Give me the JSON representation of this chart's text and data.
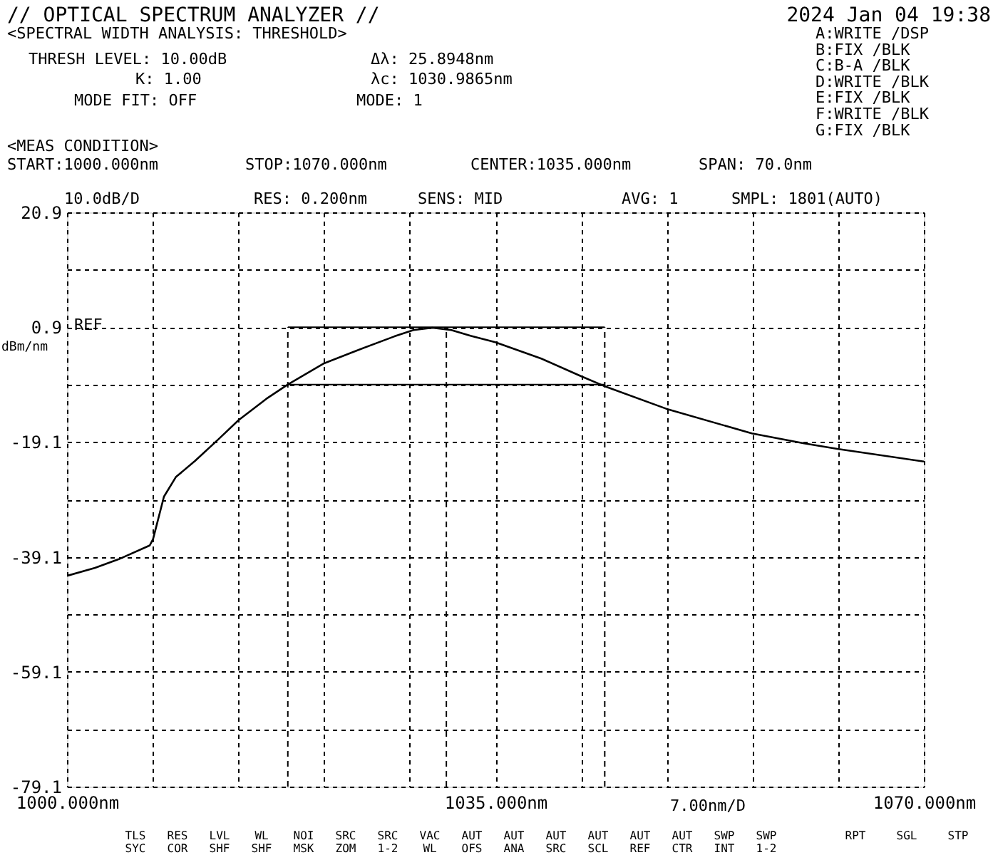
{
  "chart_data": {
    "type": "line",
    "title": "// OPTICAL SPECTRUM ANALYZER //",
    "subtitle": "2024 Jan 04 19:38",
    "ylabel": "dBm/nm",
    "xlabel": "7.00nm/D",
    "annotations": [
      "<SPECTRAL WIDTH ANALYSIS: THRESHOLD>",
      "THRESH LEVEL: 10.00dB",
      "K: 1.00",
      "MODE FIT: OFF",
      "Δλ: 25.8948nm",
      "λc: 1030.9865nm",
      "MODE: 1",
      "A:WRITE /DSP",
      "B:FIX /BLK",
      "C:B-A /BLK",
      "D:WRITE /BLK",
      "E:FIX /BLK",
      "F:WRITE /BLK",
      "G:FIX /BLK",
      "<MEAS CONDITION>",
      "START:1000.000nm",
      "STOP:1070.000nm",
      "CENTER:1035.000nm",
      "SPAN: 70.0nm",
      "10.0dB/D",
      "RES: 0.200nm",
      "SENS: MID",
      "AVG: 1",
      "SMPL: 1801(AUTO)",
      "TLS SYC",
      "RES COR",
      "LVL SHF",
      "WL SHF",
      "NOI MSK",
      "SRC ZOM",
      "SRC 1-2",
      "VAC WL",
      "AUT OFS",
      "AUT ANA",
      "AUT SRC",
      "AUT SCL",
      "AUT REF",
      "AUT CTR",
      "SWP INT",
      "SWP 1-2",
      "RPT",
      "SGL",
      "STP"
    ],
    "series": [
      {
        "color": "#000000",
        "x": [
          1000,
          1002.29,
          1004.23,
          1006.76,
          1007.03,
          1007.92,
          1008.89,
          1010.45,
          1012.38,
          1014.01,
          1016.27,
          1018.02,
          1021.0,
          1023.64,
          1026.75,
          1028.3,
          1029.85,
          1031.4,
          1032.96,
          1034.98,
          1038.78,
          1041.96,
          1043.83,
          1048.95,
          1055.94,
          1060.13,
          1062.93,
          1070
        ],
        "values": [
          -42.4,
          -41.0,
          -39.5,
          -37.1,
          -36.0,
          -28.6,
          -25.2,
          -22.4,
          -18.6,
          -15.3,
          -11.6,
          -9.1,
          -5.4,
          -3.2,
          -0.7,
          0.4,
          0.8,
          0.4,
          -0.6,
          -1.7,
          -4.6,
          -7.6,
          -9.3,
          -13.3,
          -17.6,
          -19.3,
          -20.3,
          -22.5
        ]
      }
    ],
    "xlim": [
      1000,
      1070
    ],
    "xticks": [
      {
        "value": 1000,
        "label": "1000.000nm"
      },
      {
        "value": 1007,
        "label": null
      },
      {
        "value": 1014,
        "label": null
      },
      {
        "value": 1021,
        "label": null
      },
      {
        "value": 1028,
        "label": null
      },
      {
        "value": 1035,
        "label": "1035.000nm"
      },
      {
        "value": 1042,
        "label": null
      },
      {
        "value": 1049,
        "label": null
      },
      {
        "value": 1056,
        "label": null
      },
      {
        "value": 1063,
        "label": null
      },
      {
        "value": 1070,
        "label": "1070.000nm"
      }
    ],
    "ylim": [
      -79.1,
      20.9
    ],
    "yticks": [
      20.9,
      {
        "value": 10.9,
        "label": null
      },
      0.9,
      {
        "value": -9.1,
        "label": null
      },
      -19.1,
      {
        "value": -29.1,
        "label": null
      },
      -39.1,
      {
        "value": -49.1,
        "label": null
      },
      -59.1,
      {
        "value": -69.1,
        "label": null
      },
      -79.1
    ],
    "ref_lines": [
      {
        "axis": "x",
        "value": 1018.04,
        "line_style": "dashed"
      },
      {
        "axis": "x",
        "value": 1030.99,
        "line_style": "dashed"
      },
      {
        "axis": "x",
        "value": 1043.93,
        "line_style": "dashed"
      },
      {
        "axis": "y",
        "value": 0.9,
        "label": "REF"
      },
      {
        "axis": "y",
        "value": -9.1
      }
    ],
    "grid": true
  }
}
